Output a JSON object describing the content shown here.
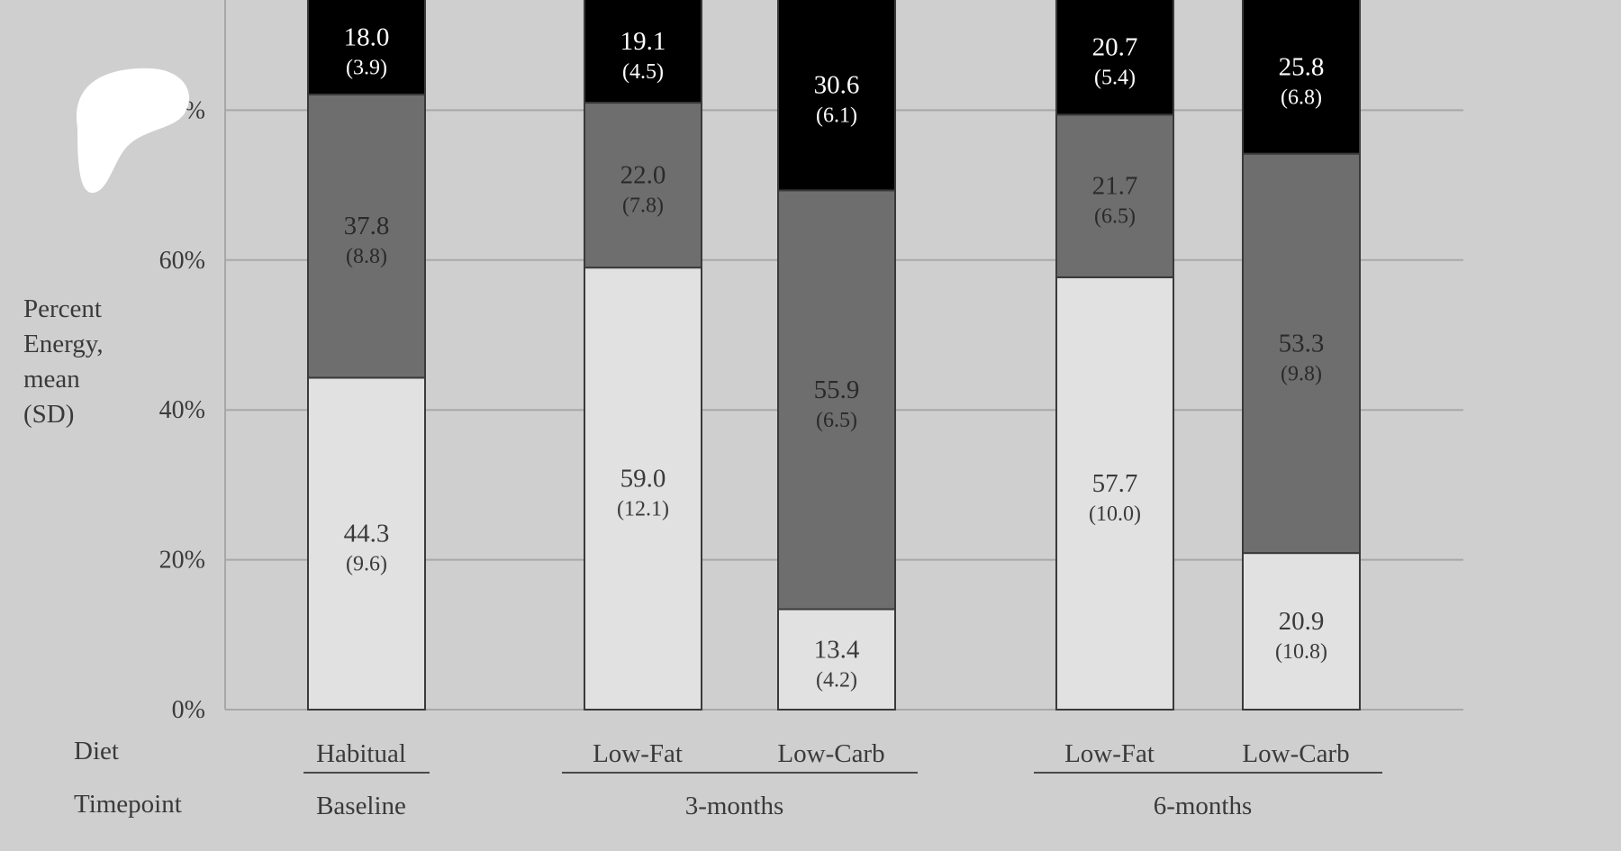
{
  "chart_data": {
    "type": "bar",
    "stacked": true,
    "ylabel": "Percent Energy, mean (SD)",
    "ylabel_lines": [
      "Percent",
      "Energy,",
      "mean",
      "(SD)"
    ],
    "y_ticks": [
      "0%",
      "20%",
      "40%",
      "60%",
      "80%"
    ],
    "ylim": [
      0,
      100
    ],
    "grid": true,
    "row_labels": {
      "diet": "Diet",
      "timepoint": "Timepoint"
    },
    "categories": [
      "Habitual",
      "Low-Fat",
      "Low-Carb",
      "Low-Fat",
      "Low-Carb"
    ],
    "timepoints": [
      {
        "label": "Baseline",
        "members": [
          0
        ]
      },
      {
        "label": "3-months",
        "members": [
          1,
          2
        ]
      },
      {
        "label": "6-months",
        "members": [
          3,
          4
        ]
      }
    ],
    "series": [
      {
        "color": "#e1e1e1",
        "text_color": "#3a3a3a",
        "values": [
          44.3,
          59.0,
          13.4,
          57.7,
          20.9
        ],
        "sd": [
          "(9.6)",
          "(12.1)",
          "(4.2)",
          "(10.0)",
          "(10.8)"
        ],
        "labels": [
          "44.3",
          "59.0",
          "13.4",
          "57.7",
          "20.9"
        ]
      },
      {
        "color": "#6e6e6e",
        "text_color": "#2a2a2a",
        "values": [
          37.8,
          22.0,
          55.9,
          21.7,
          53.3
        ],
        "sd": [
          "(8.8)",
          "(7.8)",
          "(6.5)",
          "(6.5)",
          "(9.8)"
        ],
        "labels": [
          "37.8",
          "22.0",
          "55.9",
          "21.7",
          "53.3"
        ]
      },
      {
        "color": "#000000",
        "text_color": "#ffffff",
        "values": [
          18.0,
          19.1,
          30.6,
          20.7,
          25.8
        ],
        "sd": [
          "(3.9)",
          "(4.5)",
          "(6.1)",
          "(5.4)",
          "(6.8)"
        ],
        "labels": [
          "18.0",
          "19.1",
          "30.6",
          "20.7",
          "25.8"
        ]
      }
    ]
  }
}
